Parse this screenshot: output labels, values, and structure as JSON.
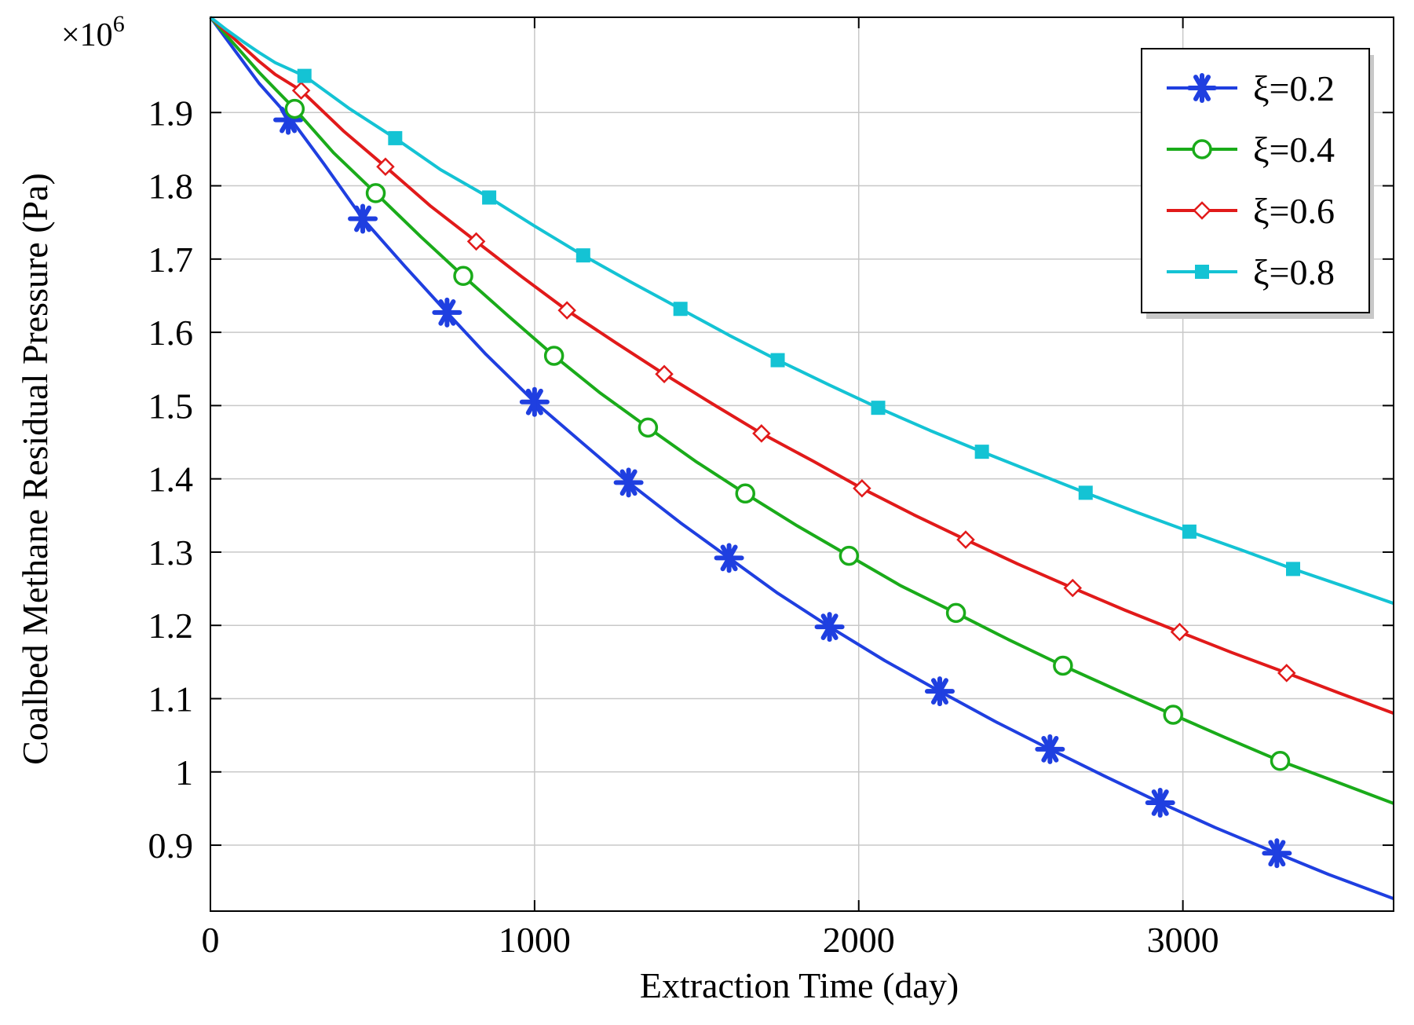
{
  "chart_data": {
    "type": "line",
    "title": "",
    "xlabel": "Extraction Time (day)",
    "ylabel": "Coalbed Methane Residual Pressure (Pa)",
    "y_multiplier": "×10",
    "y_multiplier_exp": "6",
    "xlim": [
      0,
      3650
    ],
    "ylim": [
      0.81,
      2.03
    ],
    "x_ticks": [
      0,
      1000,
      2000,
      3000
    ],
    "x_tick_labels": [
      "0",
      "1000",
      "2000",
      "3000"
    ],
    "y_ticks": [
      0.9,
      1.0,
      1.1,
      1.2,
      1.3,
      1.4,
      1.5,
      1.6,
      1.7,
      1.8,
      1.9
    ],
    "y_tick_labels": [
      "0.9",
      "1",
      "1.1",
      "1.2",
      "1.3",
      "1.4",
      "1.5",
      "1.6",
      "1.7",
      "1.8",
      "1.9"
    ],
    "grid": true,
    "legend_position": "top-right",
    "series": [
      {
        "name": "ξ=0.2",
        "color": "#1f3fe0",
        "marker": "asterisk",
        "x": [
          0,
          50,
          100,
          150,
          200,
          250,
          350,
          470,
          600,
          730,
          850,
          1000,
          1150,
          1290,
          1450,
          1600,
          1750,
          1910,
          2080,
          2250,
          2420,
          2590,
          2760,
          2930,
          3100,
          3290,
          3450,
          3650
        ],
        "y": [
          2.03,
          2.0,
          1.97,
          1.94,
          1.915,
          1.89,
          1.83,
          1.755,
          1.69,
          1.627,
          1.57,
          1.505,
          1.448,
          1.395,
          1.34,
          1.292,
          1.244,
          1.198,
          1.152,
          1.11,
          1.069,
          1.031,
          0.994,
          0.958,
          0.924,
          0.889,
          0.86,
          0.827
        ],
        "marker_x": [
          240,
          470,
          730,
          1000,
          1290,
          1600,
          1910,
          2250,
          2590,
          2930,
          3290
        ],
        "marker_y": [
          1.89,
          1.755,
          1.627,
          1.505,
          1.395,
          1.292,
          1.198,
          1.11,
          1.031,
          0.958,
          0.889
        ]
      },
      {
        "name": "ξ=0.4",
        "color": "#1aab1a",
        "marker": "circle",
        "x": [
          0,
          50,
          100,
          150,
          200,
          260,
          380,
          510,
          650,
          780,
          920,
          1060,
          1200,
          1350,
          1500,
          1650,
          1810,
          1970,
          2130,
          2300,
          2460,
          2630,
          2800,
          2970,
          3130,
          3300,
          3470,
          3650
        ],
        "y": [
          2.03,
          2.005,
          1.98,
          1.955,
          1.932,
          1.905,
          1.845,
          1.79,
          1.73,
          1.677,
          1.622,
          1.568,
          1.518,
          1.47,
          1.423,
          1.38,
          1.336,
          1.295,
          1.254,
          1.217,
          1.181,
          1.145,
          1.111,
          1.078,
          1.047,
          1.015,
          0.987,
          0.957
        ],
        "marker_x": [
          260,
          510,
          780,
          1060,
          1350,
          1650,
          1970,
          2300,
          2630,
          2970,
          3300
        ],
        "marker_y": [
          1.905,
          1.79,
          1.677,
          1.568,
          1.47,
          1.38,
          1.295,
          1.217,
          1.145,
          1.078,
          1.015
        ]
      },
      {
        "name": "ξ=0.6",
        "color": "#e11a1a",
        "marker": "diamond",
        "x": [
          0,
          50,
          100,
          150,
          200,
          280,
          410,
          540,
          680,
          820,
          960,
          1100,
          1250,
          1400,
          1550,
          1700,
          1860,
          2010,
          2170,
          2330,
          2490,
          2660,
          2820,
          2990,
          3150,
          3320,
          3480,
          3650
        ],
        "y": [
          2.03,
          2.01,
          1.99,
          1.97,
          1.952,
          1.93,
          1.875,
          1.826,
          1.772,
          1.724,
          1.676,
          1.63,
          1.586,
          1.543,
          1.502,
          1.462,
          1.424,
          1.387,
          1.351,
          1.317,
          1.284,
          1.251,
          1.221,
          1.191,
          1.163,
          1.135,
          1.108,
          1.08
        ],
        "marker_x": [
          280,
          540,
          820,
          1100,
          1400,
          1700,
          2010,
          2330,
          2660,
          2990,
          3320
        ],
        "marker_y": [
          1.93,
          1.826,
          1.724,
          1.63,
          1.543,
          1.462,
          1.387,
          1.317,
          1.251,
          1.191,
          1.135
        ]
      },
      {
        "name": "ξ=0.8",
        "color": "#14c3d4",
        "marker": "square",
        "x": [
          0,
          50,
          100,
          150,
          200,
          290,
          430,
          570,
          710,
          860,
          1000,
          1150,
          1300,
          1450,
          1600,
          1750,
          1910,
          2060,
          2220,
          2380,
          2540,
          2700,
          2860,
          3020,
          3180,
          3340,
          3500,
          3650
        ],
        "y": [
          2.03,
          2.013,
          1.997,
          1.982,
          1.968,
          1.95,
          1.905,
          1.865,
          1.822,
          1.784,
          1.745,
          1.705,
          1.668,
          1.632,
          1.596,
          1.562,
          1.528,
          1.497,
          1.466,
          1.437,
          1.409,
          1.381,
          1.354,
          1.328,
          1.303,
          1.277,
          1.253,
          1.23
        ],
        "marker_x": [
          290,
          570,
          860,
          1150,
          1450,
          1750,
          2060,
          2380,
          2700,
          3020,
          3340
        ],
        "marker_y": [
          1.95,
          1.865,
          1.784,
          1.705,
          1.632,
          1.562,
          1.497,
          1.437,
          1.381,
          1.328,
          1.277
        ]
      }
    ]
  }
}
